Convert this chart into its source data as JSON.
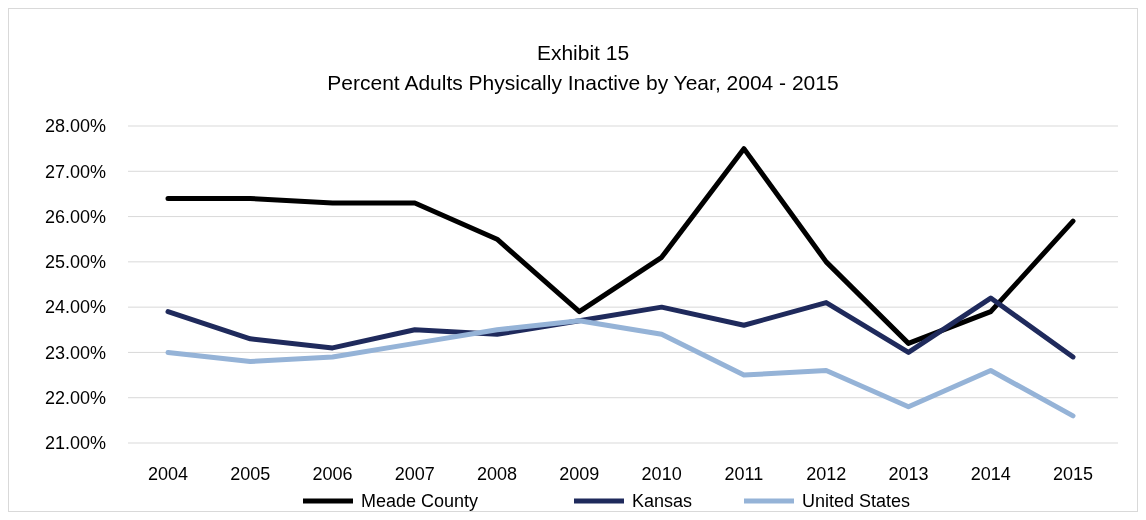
{
  "chart_data": {
    "type": "line",
    "title": "Exhibit 15",
    "subtitle": "Percent Adults Physically Inactive by Year, 2004 - 2015",
    "categories": [
      "2004",
      "2005",
      "2006",
      "2007",
      "2008",
      "2009",
      "2010",
      "2011",
      "2012",
      "2013",
      "2014",
      "2015"
    ],
    "series": [
      {
        "name": "Meade County",
        "color": "#000000",
        "values": [
          26.4,
          26.4,
          26.3,
          26.3,
          25.5,
          23.9,
          25.1,
          27.5,
          25.0,
          23.2,
          23.9,
          25.9
        ]
      },
      {
        "name": "Kansas",
        "color": "#1f2a5c",
        "values": [
          23.9,
          23.3,
          23.1,
          23.5,
          23.4,
          23.7,
          24.0,
          23.6,
          24.1,
          23.0,
          24.2,
          22.9
        ]
      },
      {
        "name": "United States",
        "color": "#95b3d7",
        "values": [
          23.0,
          22.8,
          22.9,
          23.2,
          23.5,
          23.7,
          23.4,
          22.5,
          22.6,
          21.8,
          22.6,
          21.6
        ]
      }
    ],
    "ylim": [
      21,
      28
    ],
    "yticks": [
      {
        "value": 21,
        "label": "21.00%"
      },
      {
        "value": 22,
        "label": "22.00%"
      },
      {
        "value": 23,
        "label": "23.00%"
      },
      {
        "value": 24,
        "label": "24.00%"
      },
      {
        "value": 25,
        "label": "25.00%"
      },
      {
        "value": 26,
        "label": "26.00%"
      },
      {
        "value": 27,
        "label": "27.00%"
      },
      {
        "value": 28,
        "label": "28.00%"
      }
    ],
    "grid": "y",
    "legend": "bottom",
    "line_style": "solid"
  }
}
